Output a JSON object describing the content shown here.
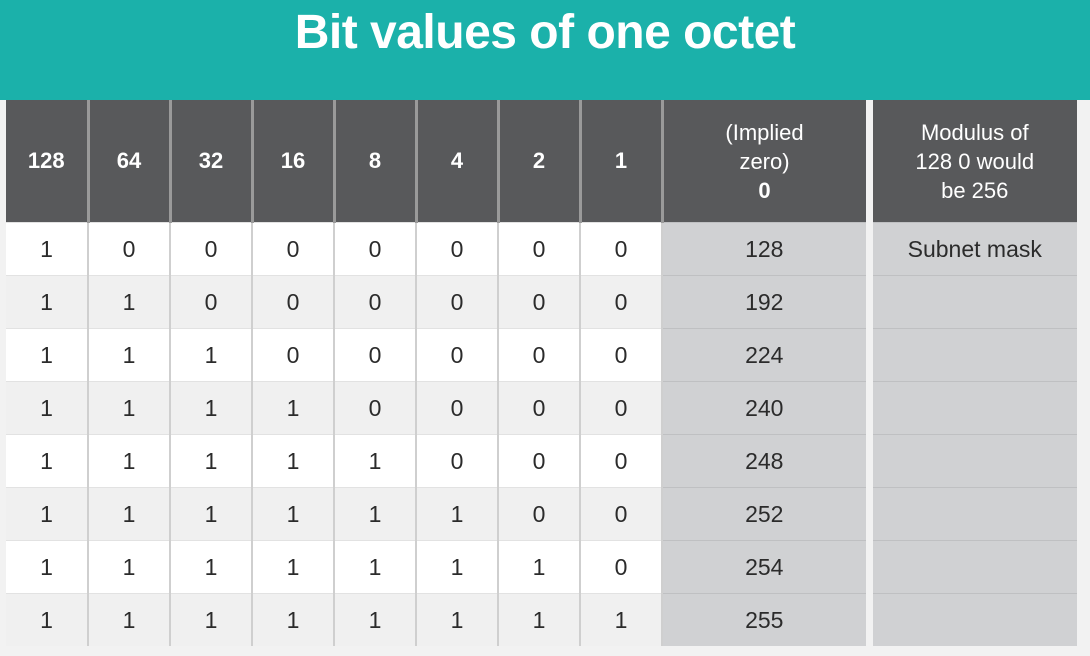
{
  "title": "Bit values of one octet",
  "columns": {
    "bits": [
      "128",
      "64",
      "32",
      "16",
      "8",
      "4",
      "2",
      "1"
    ],
    "implied": [
      "(Implied",
      "zero)",
      "0"
    ],
    "modulus": [
      "Modulus of",
      "128 0 would",
      "be 256"
    ]
  },
  "rows": [
    {
      "bits": [
        "1",
        "0",
        "0",
        "0",
        "0",
        "0",
        "0",
        "0"
      ],
      "value": "128",
      "note": "Subnet mask"
    },
    {
      "bits": [
        "1",
        "1",
        "0",
        "0",
        "0",
        "0",
        "0",
        "0"
      ],
      "value": "192",
      "note": ""
    },
    {
      "bits": [
        "1",
        "1",
        "1",
        "0",
        "0",
        "0",
        "0",
        "0"
      ],
      "value": "224",
      "note": ""
    },
    {
      "bits": [
        "1",
        "1",
        "1",
        "1",
        "0",
        "0",
        "0",
        "0"
      ],
      "value": "240",
      "note": ""
    },
    {
      "bits": [
        "1",
        "1",
        "1",
        "1",
        "1",
        "0",
        "0",
        "0"
      ],
      "value": "248",
      "note": ""
    },
    {
      "bits": [
        "1",
        "1",
        "1",
        "1",
        "1",
        "1",
        "0",
        "0"
      ],
      "value": "252",
      "note": ""
    },
    {
      "bits": [
        "1",
        "1",
        "1",
        "1",
        "1",
        "1",
        "1",
        "0"
      ],
      "value": "254",
      "note": ""
    },
    {
      "bits": [
        "1",
        "1",
        "1",
        "1",
        "1",
        "1",
        "1",
        "1"
      ],
      "value": "255",
      "note": ""
    }
  ],
  "colors": {
    "banner": "#1bb1aa",
    "header": "#58595b",
    "value_column": "#d0d1d3"
  }
}
